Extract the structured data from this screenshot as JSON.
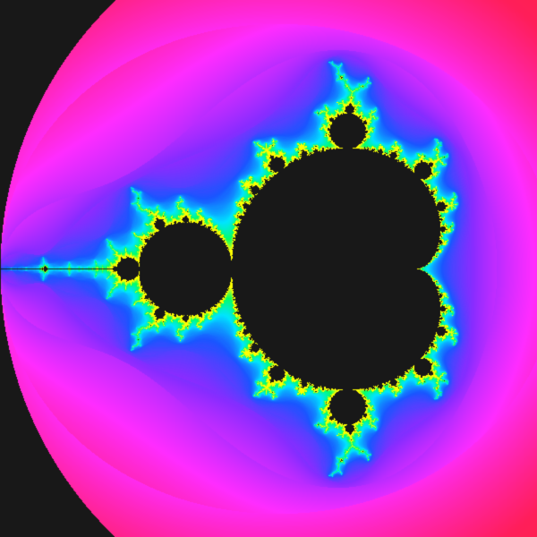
{
  "fractal": {
    "name": "mandelbrot-set",
    "colors": {
      "background": "#181818",
      "set_interior": "#181818",
      "gradient_inner": "#ffff00",
      "gradient_stops": [
        "#ffff00",
        "#00ff66",
        "#00e5ff",
        "#1a55ff",
        "#8a2cff",
        "#ff2cff",
        "#ff1e5a",
        "#ff2a2a"
      ],
      "gradient_outer": "#ff2a2a"
    },
    "view": {
      "center_re": -0.55,
      "center_im": 0.0,
      "span": 2.9
    },
    "max_iterations": 120,
    "escape_region": "cubic-escape-lobe"
  }
}
